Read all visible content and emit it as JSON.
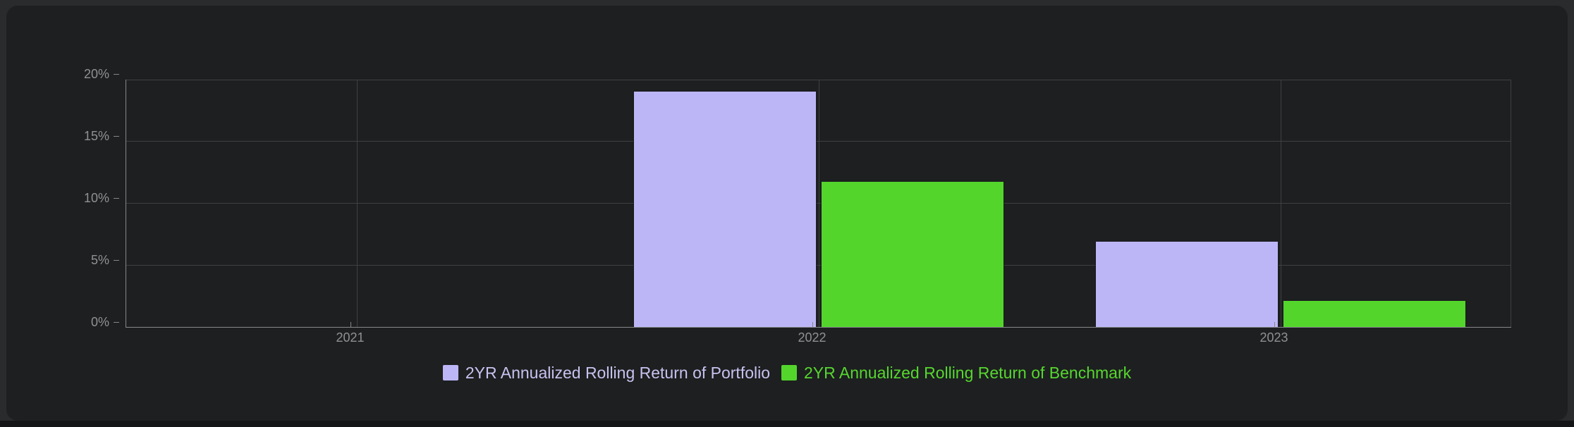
{
  "chart_data": {
    "type": "bar",
    "categories": [
      "2021",
      "2022",
      "2023"
    ],
    "series": [
      {
        "name": "2YR Annualized Rolling Return of Portfolio",
        "color": "#bdb6f6",
        "label_color": "#c7c2f0",
        "values": [
          null,
          19.1,
          7.0
        ]
      },
      {
        "name": "2YR Annualized Rolling Return of Benchmark",
        "color": "#53d52c",
        "label_color": "#56d72e",
        "values": [
          null,
          11.8,
          2.2
        ]
      }
    ],
    "title": "",
    "xlabel": "",
    "ylabel": "",
    "ylim": [
      0,
      20
    ],
    "y_ticks": [
      {
        "value": 0,
        "label": "0%"
      },
      {
        "value": 5,
        "label": "5%"
      },
      {
        "value": 10,
        "label": "10%"
      },
      {
        "value": 15,
        "label": "15%"
      },
      {
        "value": 20,
        "label": "20%"
      }
    ],
    "grid": true,
    "legend_position": "bottom"
  },
  "colors": {
    "outer_background": "#2a2b2c",
    "panel_background": "#1d1f20",
    "bottom_strip": "#141517",
    "gridline": "#3e4042",
    "axis_line": "#85878a",
    "tick_label": "#8f9193"
  }
}
